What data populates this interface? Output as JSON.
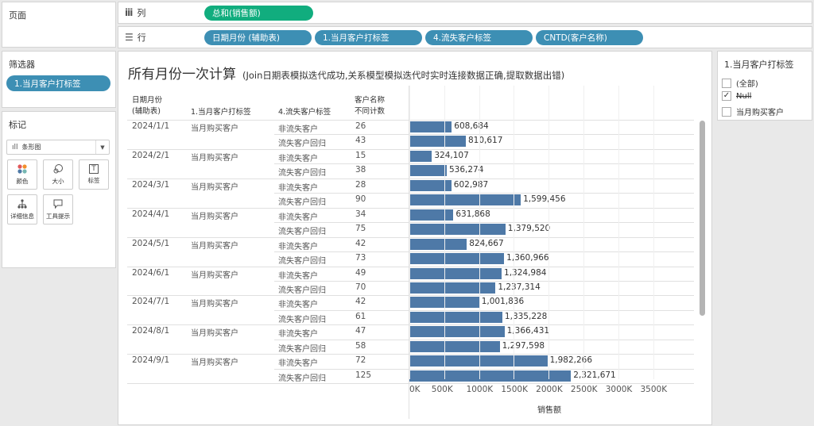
{
  "shelves": {
    "pages_label": "页面",
    "columns_label": "列",
    "rows_label": "行",
    "columns_pill": "总和(销售额)",
    "rows_pills": [
      "日期月份 (辅助表)",
      "1.当月客户打标签",
      "4.流失客户标签",
      "CNTD(客户名称)"
    ]
  },
  "filters": {
    "title": "筛选器",
    "pill": "1.当月客户打标签"
  },
  "marks": {
    "title": "标记",
    "mark_type": "条形图",
    "cards": [
      "颜色",
      "大小",
      "标签",
      "详细信息",
      "工具提示"
    ]
  },
  "legend": {
    "title": "1.当月客户打标签",
    "items": [
      {
        "label": "(全部)",
        "checked": false,
        "strike": false
      },
      {
        "label": "Null",
        "checked": true,
        "strike": true
      },
      {
        "label": "当月购买客户",
        "checked": false,
        "strike": false
      }
    ]
  },
  "viz": {
    "title": "所有月份一次计算",
    "subtitle": "(Join日期表模拟迭代成功,关系模型模拟迭代时实时连接数据正确,提取数据出错)",
    "headers": {
      "date": "日期月份\n(辅助表)",
      "tag": "1.当月客户打标签",
      "churn": "4.流失客户标签",
      "count": "客户名称\n不同计数"
    },
    "axis_title": "销售额"
  },
  "chart_data": {
    "type": "bar",
    "orientation": "horizontal",
    "xlabel": "销售额",
    "xlim": [
      0,
      3500000
    ],
    "x_ticks": [
      "0K",
      "500K",
      "1000K",
      "1500K",
      "2000K",
      "2500K",
      "3000K",
      "3500K"
    ],
    "rows": [
      {
        "date": "2024/1/1",
        "tag": "当月购买客户",
        "churn": "非流失客户",
        "count": "26",
        "value": 608684,
        "label": "608,684"
      },
      {
        "date": "",
        "tag": "",
        "churn": "流失客户回归",
        "count": "43",
        "value": 810617,
        "label": "810,617"
      },
      {
        "date": "2024/2/1",
        "tag": "当月购买客户",
        "churn": "非流失客户",
        "count": "15",
        "value": 324107,
        "label": "324,107"
      },
      {
        "date": "",
        "tag": "",
        "churn": "流失客户回归",
        "count": "38",
        "value": 536274,
        "label": "536,274"
      },
      {
        "date": "2024/3/1",
        "tag": "当月购买客户",
        "churn": "非流失客户",
        "count": "28",
        "value": 602987,
        "label": "602,987"
      },
      {
        "date": "",
        "tag": "",
        "churn": "流失客户回归",
        "count": "90",
        "value": 1599456,
        "label": "1,599,456"
      },
      {
        "date": "2024/4/1",
        "tag": "当月购买客户",
        "churn": "非流失客户",
        "count": "34",
        "value": 631868,
        "label": "631,868"
      },
      {
        "date": "",
        "tag": "",
        "churn": "流失客户回归",
        "count": "75",
        "value": 1379520,
        "label": "1,379,520"
      },
      {
        "date": "2024/5/1",
        "tag": "当月购买客户",
        "churn": "非流失客户",
        "count": "42",
        "value": 824667,
        "label": "824,667"
      },
      {
        "date": "",
        "tag": "",
        "churn": "流失客户回归",
        "count": "73",
        "value": 1360966,
        "label": "1,360,966"
      },
      {
        "date": "2024/6/1",
        "tag": "当月购买客户",
        "churn": "非流失客户",
        "count": "49",
        "value": 1324984,
        "label": "1,324,984"
      },
      {
        "date": "",
        "tag": "",
        "churn": "流失客户回归",
        "count": "70",
        "value": 1237314,
        "label": "1,237,314"
      },
      {
        "date": "2024/7/1",
        "tag": "当月购买客户",
        "churn": "非流失客户",
        "count": "42",
        "value": 1001836,
        "label": "1,001,836"
      },
      {
        "date": "",
        "tag": "",
        "churn": "流失客户回归",
        "count": "61",
        "value": 1335228,
        "label": "1,335,228"
      },
      {
        "date": "2024/8/1",
        "tag": "当月购买客户",
        "churn": "非流失客户",
        "count": "47",
        "value": 1366431,
        "label": "1,366,431"
      },
      {
        "date": "",
        "tag": "",
        "churn": "流失客户回归",
        "count": "58",
        "value": 1297598,
        "label": "1,297,598"
      },
      {
        "date": "2024/9/1",
        "tag": "当月购买客户",
        "churn": "非流失客户",
        "count": "72",
        "value": 1982266,
        "label": "1,982,266"
      },
      {
        "date": "",
        "tag": "",
        "churn": "流失客户回归",
        "count": "125",
        "value": 2321671,
        "label": "2,321,671"
      }
    ]
  },
  "colors": {
    "bar": "#4e79a7",
    "pill_measure": "#11ad7e",
    "pill_dimension": "#3d8fb4"
  }
}
